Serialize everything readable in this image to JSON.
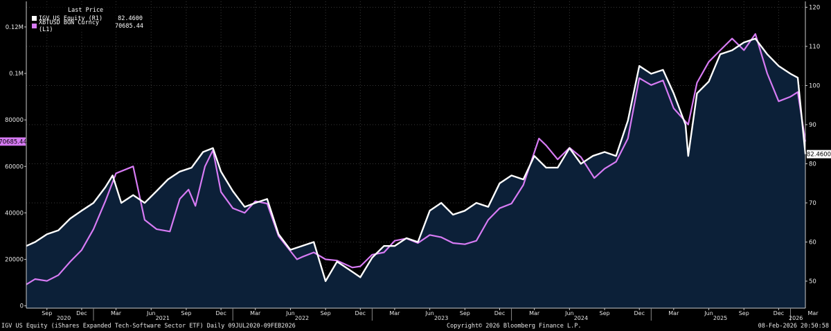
{
  "legend": {
    "header": "Last Price",
    "items": [
      {
        "name": "IGV US Equity  (R1)",
        "value": "82.4600",
        "color": "#ffffff"
      },
      {
        "name": "XBTUSD BGN Curncy  (L1)",
        "value": "70685.44",
        "color": "#d77bf4"
      }
    ]
  },
  "footer": {
    "left": "IGV US Equity (iShares Expanded Tech-Software Sector ETF) Daily 09JUL2020-09FEB2026",
    "center": "Copyright© 2026 Bloomberg Finance L.P.",
    "right": "08-Feb-2026 20:50:58"
  },
  "colors": {
    "background": "#000000",
    "fill": "#0c2038",
    "igv": "#ffffff",
    "btc": "#d77bf4",
    "grid": "#3a3a3a",
    "axis": "#cccccc"
  },
  "chart_data": {
    "type": "line",
    "x_range": [
      "2020-07-09",
      "2026-02-09"
    ],
    "y_left": {
      "ticks": [
        0,
        20000,
        40000,
        60000,
        80000,
        100000,
        120000
      ],
      "tick_labels": [
        "0",
        "20000",
        "40000",
        "60000",
        "80000",
        "0.1M",
        "0.12M"
      ],
      "ylim": [
        -1000,
        131000
      ]
    },
    "y_right": {
      "ticks": [
        50,
        60,
        70,
        80,
        90,
        100,
        110,
        120
      ],
      "tick_labels": [
        "50",
        "60",
        "70",
        "80",
        "90",
        "100",
        "110",
        "120"
      ],
      "ylim": [
        43.1,
        121.5
      ]
    },
    "x_month_labels": [
      {
        "date": "2020-09-01",
        "label": "Sep"
      },
      {
        "date": "2020-12-01",
        "label": "Dec"
      },
      {
        "date": "2021-03-01",
        "label": "Mar"
      },
      {
        "date": "2021-06-01",
        "label": "Jun"
      },
      {
        "date": "2021-09-01",
        "label": "Sep"
      },
      {
        "date": "2021-12-01",
        "label": "Dec"
      },
      {
        "date": "2022-03-01",
        "label": "Mar"
      },
      {
        "date": "2022-06-01",
        "label": "Jun"
      },
      {
        "date": "2022-09-01",
        "label": "Sep"
      },
      {
        "date": "2022-12-01",
        "label": "Dec"
      },
      {
        "date": "2023-03-01",
        "label": "Mar"
      },
      {
        "date": "2023-06-01",
        "label": "Jun"
      },
      {
        "date": "2023-09-01",
        "label": "Sep"
      },
      {
        "date": "2023-12-01",
        "label": "Dec"
      },
      {
        "date": "2024-03-01",
        "label": "Mar"
      },
      {
        "date": "2024-06-01",
        "label": "Jun"
      },
      {
        "date": "2024-09-01",
        "label": "Sep"
      },
      {
        "date": "2024-12-01",
        "label": "Dec"
      },
      {
        "date": "2025-03-01",
        "label": "Mar"
      },
      {
        "date": "2025-06-01",
        "label": "Jun"
      },
      {
        "date": "2025-09-01",
        "label": "Sep"
      },
      {
        "date": "2025-12-01",
        "label": "Dec"
      },
      {
        "date": "2026-03-01",
        "label": "Mar"
      }
    ],
    "x_year_labels": [
      {
        "date": "2020-10-15",
        "label": "2020"
      },
      {
        "date": "2021-07-01",
        "label": "2021"
      },
      {
        "date": "2022-07-01",
        "label": "2022"
      },
      {
        "date": "2023-07-01",
        "label": "2023"
      },
      {
        "date": "2024-07-01",
        "label": "2024"
      },
      {
        "date": "2025-07-01",
        "label": "2025"
      },
      {
        "date": "2026-01-15",
        "label": "2026"
      }
    ],
    "year_boundaries": [
      "2021-01-01",
      "2022-01-01",
      "2023-01-01",
      "2024-01-01",
      "2025-01-01",
      "2026-01-01"
    ],
    "last_labels": {
      "btc": "70685.44",
      "igv": "82.4600"
    },
    "series": [
      {
        "name": "IGV US Equity  (R1)",
        "axis": "right",
        "x": [
          "2020-07-09",
          "2020-08-01",
          "2020-09-01",
          "2020-10-01",
          "2020-11-01",
          "2020-12-01",
          "2021-01-01",
          "2021-02-01",
          "2021-02-20",
          "2021-03-15",
          "2021-04-15",
          "2021-05-15",
          "2021-06-15",
          "2021-07-15",
          "2021-08-15",
          "2021-09-15",
          "2021-10-15",
          "2021-11-10",
          "2021-12-01",
          "2022-01-01",
          "2022-02-01",
          "2022-03-01",
          "2022-04-01",
          "2022-05-01",
          "2022-06-01",
          "2022-07-01",
          "2022-08-01",
          "2022-09-01",
          "2022-10-01",
          "2022-11-01",
          "2022-12-01",
          "2023-01-01",
          "2023-02-01",
          "2023-03-01",
          "2023-04-01",
          "2023-05-01",
          "2023-06-01",
          "2023-07-01",
          "2023-08-01",
          "2023-09-01",
          "2023-10-01",
          "2023-11-01",
          "2023-12-01",
          "2024-01-01",
          "2024-02-01",
          "2024-03-01",
          "2024-04-01",
          "2024-05-01",
          "2024-06-01",
          "2024-07-01",
          "2024-08-01",
          "2024-09-01",
          "2024-10-01",
          "2024-11-01",
          "2024-12-01",
          "2025-01-01",
          "2025-02-01",
          "2025-03-01",
          "2025-04-01",
          "2025-04-08",
          "2025-05-01",
          "2025-06-01",
          "2025-07-01",
          "2025-08-01",
          "2025-09-01",
          "2025-10-01",
          "2025-11-01",
          "2025-12-01",
          "2026-01-01",
          "2026-01-20",
          "2026-02-09"
        ],
        "values": [
          59,
          60,
          62,
          63,
          66,
          68,
          70,
          74,
          77,
          70,
          72,
          70,
          73,
          76,
          78,
          79,
          83,
          84,
          78,
          73,
          69,
          70,
          71,
          62,
          58,
          59,
          60,
          50,
          55,
          53,
          51,
          56,
          59,
          59,
          61,
          60,
          68,
          70,
          67,
          68,
          70,
          69,
          75,
          77,
          76,
          82,
          79,
          79,
          84,
          80,
          82,
          83,
          82,
          91,
          105,
          103,
          104,
          98,
          90,
          82,
          98,
          101,
          108,
          109,
          111,
          112,
          108,
          105,
          103,
          102,
          82.46
        ]
      },
      {
        "name": "XBTUSD BGN Curncy  (L1)",
        "axis": "left",
        "x": [
          "2020-07-09",
          "2020-08-01",
          "2020-09-01",
          "2020-10-01",
          "2020-11-01",
          "2020-12-01",
          "2021-01-01",
          "2021-02-01",
          "2021-03-01",
          "2021-04-15",
          "2021-05-15",
          "2021-06-15",
          "2021-07-20",
          "2021-08-15",
          "2021-09-07",
          "2021-09-25",
          "2021-10-20",
          "2021-11-10",
          "2021-12-01",
          "2022-01-01",
          "2022-02-01",
          "2022-03-01",
          "2022-04-01",
          "2022-05-01",
          "2022-06-18",
          "2022-07-01",
          "2022-08-01",
          "2022-09-01",
          "2022-10-01",
          "2022-11-10",
          "2022-12-01",
          "2023-01-01",
          "2023-02-01",
          "2023-03-01",
          "2023-04-01",
          "2023-05-01",
          "2023-06-01",
          "2023-07-01",
          "2023-08-01",
          "2023-09-01",
          "2023-10-01",
          "2023-11-01",
          "2023-12-01",
          "2024-01-01",
          "2024-02-01",
          "2024-03-13",
          "2024-04-01",
          "2024-05-01",
          "2024-06-01",
          "2024-07-01",
          "2024-08-05",
          "2024-09-01",
          "2024-10-01",
          "2024-11-01",
          "2024-12-01",
          "2025-01-01",
          "2025-02-01",
          "2025-03-01",
          "2025-04-08",
          "2025-05-01",
          "2025-06-01",
          "2025-07-01",
          "2025-08-01",
          "2025-09-01",
          "2025-10-01",
          "2025-11-01",
          "2025-12-01",
          "2026-01-01",
          "2026-01-20",
          "2026-02-09"
        ],
        "values": [
          9200,
          11500,
          10700,
          13200,
          19000,
          24000,
          33000,
          45000,
          57000,
          60000,
          37000,
          33000,
          32000,
          46000,
          50000,
          43000,
          60000,
          67000,
          49000,
          42000,
          40000,
          45000,
          44000,
          30000,
          20000,
          21000,
          23000,
          20000,
          19500,
          16500,
          17000,
          22000,
          23000,
          28000,
          29000,
          27000,
          30500,
          29500,
          27000,
          26500,
          28000,
          37000,
          42000,
          44000,
          52000,
          72000,
          69000,
          63000,
          68000,
          64000,
          55000,
          59000,
          62000,
          72000,
          98000,
          95000,
          97000,
          85000,
          78000,
          96000,
          105000,
          110000,
          115000,
          110000,
          117000,
          100000,
          88000,
          90000,
          92000,
          70685.44
        ]
      }
    ]
  }
}
